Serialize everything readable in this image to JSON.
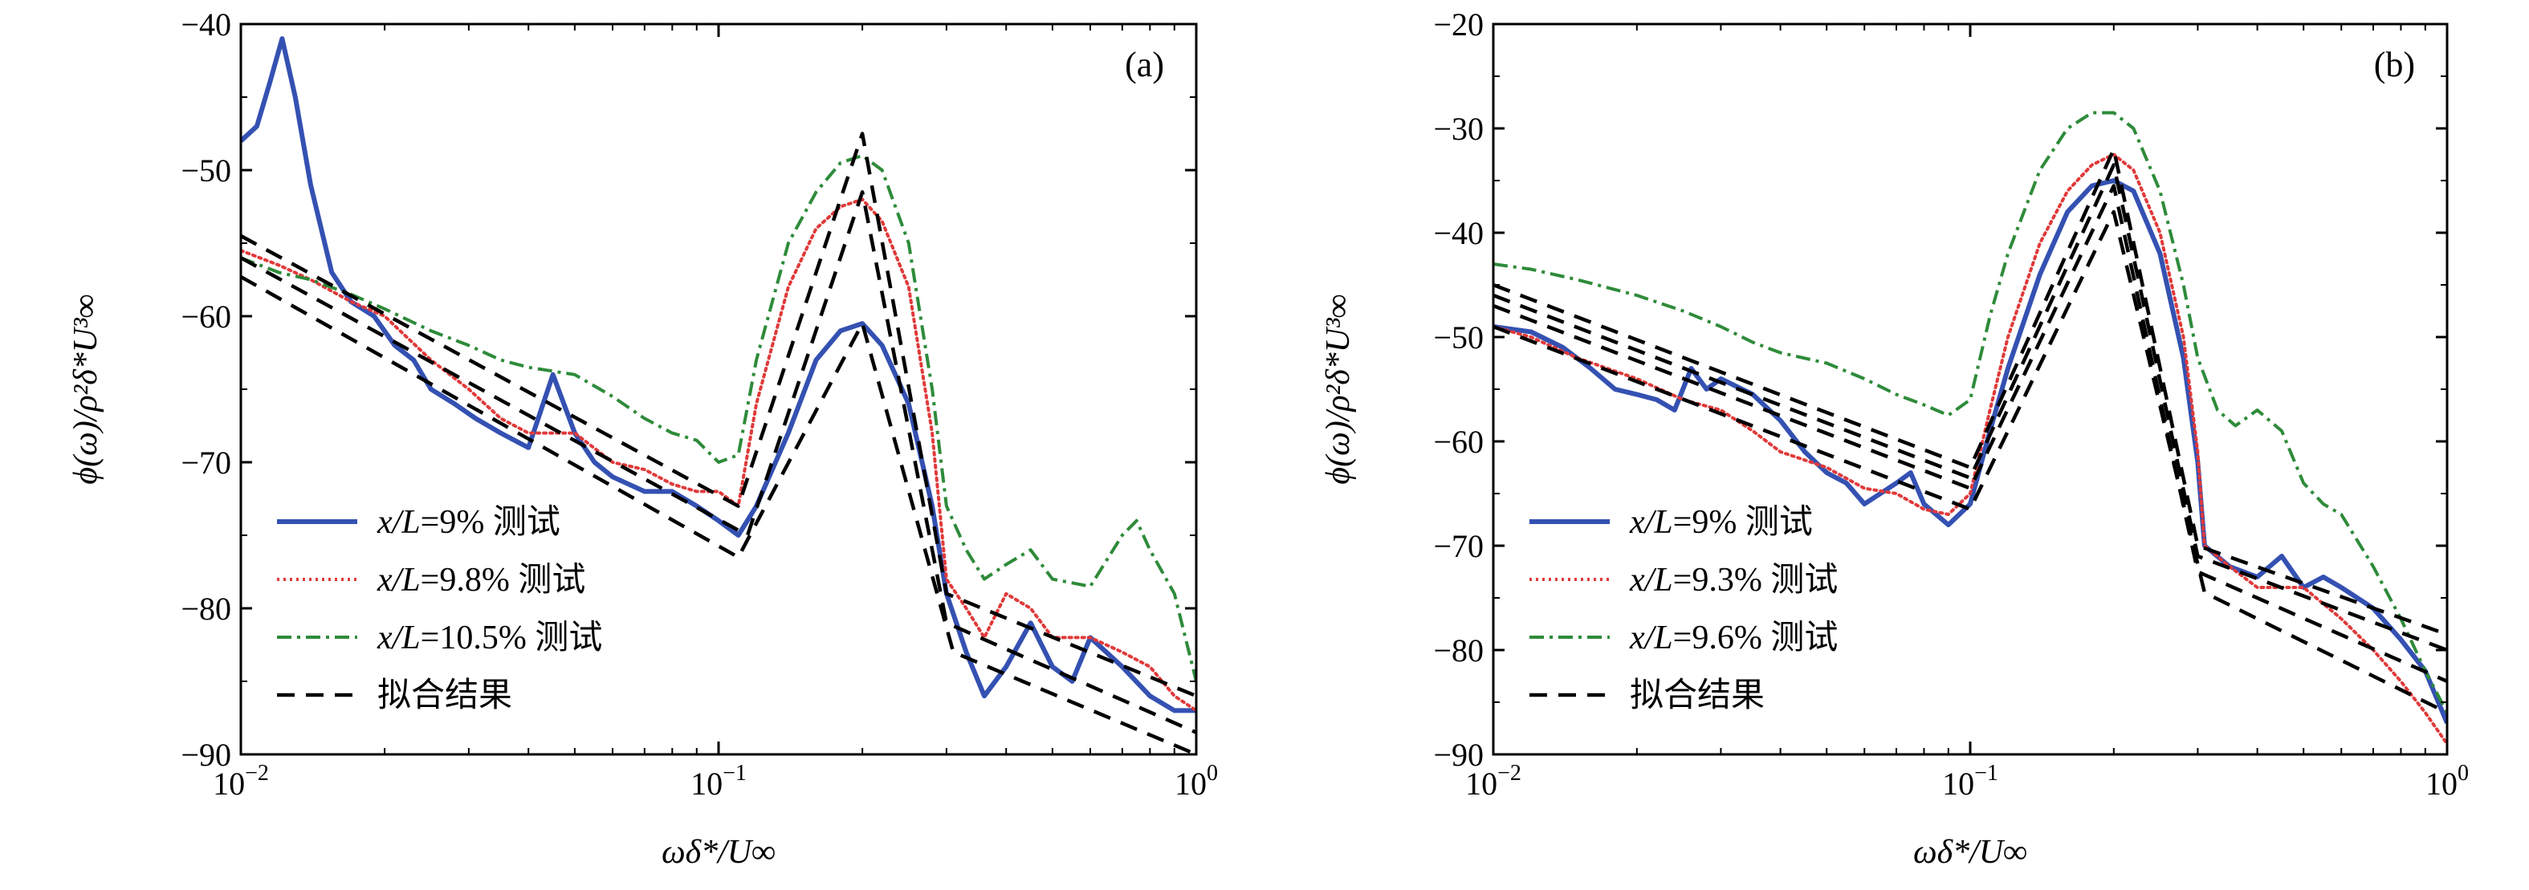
{
  "chart_data": [
    {
      "type": "line",
      "panel_label": "(a)",
      "xscale": "log",
      "xlim": [
        0.01,
        1
      ],
      "ylim": [
        -90,
        -40
      ],
      "xlabel": "ωδ*/U∞",
      "ylabel": "ϕ(ω)/ρ²δ*U³∞",
      "x_ticks": [
        0.01,
        0.1,
        1
      ],
      "x_tick_labels": [
        [
          "10",
          "−2"
        ],
        [
          "10",
          "−1"
        ],
        [
          "10",
          "0"
        ]
      ],
      "y_ticks": [
        -90,
        -80,
        -70,
        -60,
        -50,
        -40
      ],
      "y_tick_labels": [
        "−90",
        "−80",
        "−70",
        "−60",
        "−50",
        "−40"
      ],
      "legend_position": "lower-left",
      "series": [
        {
          "name": "x/L=9% 测试",
          "name_italic": "x/L",
          "name_rest": "=9% 测试",
          "color": "#3451b2",
          "style": "solid",
          "x": [
            0.01,
            0.0108,
            0.0115,
            0.0122,
            0.013,
            0.014,
            0.0155,
            0.017,
            0.019,
            0.021,
            0.023,
            0.025,
            0.028,
            0.031,
            0.035,
            0.04,
            0.045,
            0.05,
            0.055,
            0.06,
            0.07,
            0.08,
            0.09,
            0.1,
            0.11,
            0.12,
            0.14,
            0.16,
            0.18,
            0.2,
            0.22,
            0.25,
            0.28,
            0.3,
            0.33,
            0.36,
            0.4,
            0.45,
            0.5,
            0.55,
            0.6,
            0.7,
            0.8,
            0.9,
            1.0
          ],
          "y": [
            -48,
            -47,
            -44,
            -41,
            -45,
            -51,
            -57,
            -59,
            -60,
            -62,
            -63,
            -65,
            -66,
            -67,
            -68,
            -69,
            -64,
            -68,
            -70,
            -71,
            -72,
            -72,
            -73,
            -74,
            -75,
            -73,
            -68,
            -63,
            -61,
            -60.5,
            -62,
            -66,
            -73,
            -79,
            -83,
            -86,
            -84,
            -81,
            -84,
            -85,
            -82,
            -84,
            -86,
            -87,
            -87
          ]
        },
        {
          "name": "x/L=9.8% 测试",
          "name_italic": "x/L",
          "name_rest": "=9.8% 测试",
          "color": "#e03a3a",
          "style": "dotted",
          "x": [
            0.01,
            0.012,
            0.014,
            0.017,
            0.02,
            0.025,
            0.03,
            0.035,
            0.04,
            0.05,
            0.06,
            0.07,
            0.08,
            0.09,
            0.1,
            0.11,
            0.12,
            0.14,
            0.16,
            0.18,
            0.2,
            0.22,
            0.25,
            0.28,
            0.3,
            0.33,
            0.36,
            0.4,
            0.45,
            0.5,
            0.6,
            0.7,
            0.8,
            0.9,
            1.0
          ],
          "y": [
            -55.5,
            -56.5,
            -57.5,
            -59,
            -60,
            -63,
            -65,
            -67,
            -68,
            -68,
            -70,
            -70.5,
            -71.5,
            -72,
            -72,
            -73,
            -66,
            -58,
            -54,
            -52.5,
            -52,
            -53.5,
            -58,
            -68,
            -78,
            -80,
            -82,
            -79,
            -80,
            -82,
            -82,
            -83,
            -84,
            -86,
            -87
          ]
        },
        {
          "name": "x/L=10.5% 测试",
          "name_italic": "x/L",
          "name_rest": "=10.5% 测试",
          "color": "#2e8b3a",
          "style": "dashdot",
          "x": [
            0.01,
            0.012,
            0.014,
            0.017,
            0.02,
            0.025,
            0.03,
            0.035,
            0.04,
            0.05,
            0.06,
            0.07,
            0.08,
            0.09,
            0.1,
            0.11,
            0.12,
            0.14,
            0.16,
            0.18,
            0.2,
            0.22,
            0.25,
            0.28,
            0.3,
            0.33,
            0.36,
            0.4,
            0.45,
            0.5,
            0.6,
            0.7,
            0.75,
            0.8,
            0.9,
            1.0
          ],
          "y": [
            -56,
            -57,
            -57.5,
            -58.5,
            -59.5,
            -61,
            -62,
            -63,
            -63.5,
            -64,
            -65.5,
            -67,
            -68,
            -68.5,
            -70,
            -69.5,
            -63,
            -55,
            -51.5,
            -49.5,
            -49,
            -50,
            -55,
            -65,
            -73,
            -76,
            -78,
            -77,
            -76,
            -78,
            -78.5,
            -75,
            -74,
            -76,
            -79,
            -85
          ]
        },
        {
          "name": "拟合结果",
          "name_italic": "",
          "name_rest": "拟合结果",
          "color": "#000000",
          "style": "dashed",
          "x": [
            0.01,
            0.11,
            0.2,
            0.3,
            1.0
          ],
          "y": [
            -54.5,
            -73,
            -47.5,
            -79,
            -86
          ]
        },
        {
          "name": "",
          "color": "#000000",
          "style": "dashed",
          "x": [
            0.01,
            0.115,
            0.2,
            0.3,
            1.0
          ],
          "y": [
            -56,
            -75,
            -51.5,
            -81,
            -88.5
          ]
        },
        {
          "name": "",
          "color": "#000000",
          "style": "dashed",
          "x": [
            0.01,
            0.11,
            0.2,
            0.31,
            1.0
          ],
          "y": [
            -57.3,
            -76.5,
            -60.5,
            -83,
            -90
          ]
        }
      ]
    },
    {
      "type": "line",
      "panel_label": "(b)",
      "xscale": "log",
      "xlim": [
        0.01,
        1
      ],
      "ylim": [
        -90,
        -20
      ],
      "xlabel": "ωδ*/U∞",
      "ylabel": "ϕ(ω)/ρ²δ*U³∞",
      "x_ticks": [
        0.01,
        0.1,
        1
      ],
      "x_tick_labels": [
        [
          "10",
          "−2"
        ],
        [
          "10",
          "−1"
        ],
        [
          "10",
          "0"
        ]
      ],
      "y_ticks": [
        -90,
        -80,
        -70,
        -60,
        -50,
        -40,
        -30,
        -20
      ],
      "y_tick_labels": [
        "−90",
        "−80",
        "−70",
        "−60",
        "−50",
        "−40",
        "−30",
        "−20"
      ],
      "legend_position": "lower-left",
      "series": [
        {
          "name": "x/L=9% 测试",
          "name_italic": "x/L",
          "name_rest": "=9% 测试",
          "color": "#3451b2",
          "style": "solid",
          "x": [
            0.01,
            0.012,
            0.014,
            0.016,
            0.018,
            0.02,
            0.022,
            0.024,
            0.026,
            0.028,
            0.03,
            0.035,
            0.04,
            0.045,
            0.05,
            0.055,
            0.06,
            0.07,
            0.075,
            0.08,
            0.09,
            0.1,
            0.11,
            0.12,
            0.14,
            0.16,
            0.18,
            0.2,
            0.22,
            0.25,
            0.28,
            0.3,
            0.31,
            0.35,
            0.4,
            0.45,
            0.5,
            0.55,
            0.6,
            0.7,
            0.8,
            0.9,
            1.0
          ],
          "y": [
            -49,
            -49.5,
            -51,
            -53,
            -55,
            -55.5,
            -56,
            -57,
            -53,
            -55,
            -54,
            -55.5,
            -58,
            -61,
            -63,
            -64,
            -66,
            -64,
            -63,
            -66,
            -68,
            -66,
            -59,
            -53,
            -44,
            -38,
            -35.5,
            -35,
            -36,
            -42,
            -52,
            -62,
            -70,
            -72,
            -73,
            -71,
            -74,
            -73,
            -74,
            -76,
            -79,
            -82,
            -87
          ]
        },
        {
          "name": "x/L=9.3% 测试",
          "name_italic": "x/L",
          "name_rest": "=9.3% 测试",
          "color": "#e03a3a",
          "style": "dotted",
          "x": [
            0.01,
            0.012,
            0.015,
            0.02,
            0.025,
            0.03,
            0.035,
            0.04,
            0.05,
            0.06,
            0.07,
            0.08,
            0.09,
            0.1,
            0.11,
            0.12,
            0.14,
            0.16,
            0.18,
            0.2,
            0.22,
            0.25,
            0.28,
            0.3,
            0.31,
            0.35,
            0.4,
            0.5,
            0.6,
            0.7,
            0.8,
            0.9,
            1.0
          ],
          "y": [
            -49,
            -50,
            -52,
            -54,
            -56,
            -57,
            -59,
            -61,
            -62.5,
            -64.5,
            -65,
            -66.5,
            -67,
            -65,
            -57,
            -50,
            -41,
            -36,
            -33.5,
            -32.5,
            -34,
            -40,
            -50,
            -61,
            -70,
            -72,
            -74,
            -74,
            -77,
            -80,
            -83,
            -86,
            -89
          ]
        },
        {
          "name": "x/L=9.6% 测试",
          "name_italic": "x/L",
          "name_rest": "=9.6% 测试",
          "color": "#2e8b3a",
          "style": "dashdot",
          "x": [
            0.01,
            0.012,
            0.015,
            0.02,
            0.025,
            0.03,
            0.035,
            0.04,
            0.05,
            0.06,
            0.07,
            0.08,
            0.09,
            0.1,
            0.11,
            0.12,
            0.14,
            0.16,
            0.18,
            0.2,
            0.22,
            0.25,
            0.28,
            0.3,
            0.33,
            0.36,
            0.4,
            0.45,
            0.5,
            0.55,
            0.6,
            0.7,
            0.8,
            0.9,
            1.0
          ],
          "y": [
            -43,
            -43.5,
            -44.5,
            -46,
            -47.5,
            -49,
            -50.5,
            -51.5,
            -52.5,
            -54,
            -55.5,
            -56.5,
            -57.5,
            -56,
            -48,
            -42,
            -34,
            -30,
            -28.5,
            -28.5,
            -30,
            -36,
            -45,
            -52,
            -57,
            -58.5,
            -57,
            -59,
            -64,
            -66,
            -67,
            -72,
            -77,
            -82,
            -86
          ]
        },
        {
          "name": "拟合结果",
          "name_italic": "",
          "name_rest": "拟合结果",
          "color": "#000000",
          "style": "dashed",
          "x": [
            0.01,
            0.1,
            0.2,
            0.3,
            1.0
          ],
          "y": [
            -45,
            -62.5,
            -32,
            -70,
            -78.5
          ]
        },
        {
          "name": "",
          "color": "#000000",
          "style": "dashed",
          "x": [
            0.01,
            0.1,
            0.2,
            0.3,
            1.0
          ],
          "y": [
            -46,
            -63.5,
            -33.5,
            -71,
            -80
          ]
        },
        {
          "name": "",
          "color": "#000000",
          "style": "dashed",
          "x": [
            0.01,
            0.1,
            0.2,
            0.3,
            1.0
          ],
          "y": [
            -47,
            -64.5,
            -35.5,
            -72.5,
            -83
          ]
        },
        {
          "name": "",
          "color": "#000000",
          "style": "dashed",
          "x": [
            0.01,
            0.1,
            0.2,
            0.31,
            1.0
          ],
          "y": [
            -49,
            -66.5,
            -38,
            -74.5,
            -86
          ]
        }
      ]
    }
  ]
}
